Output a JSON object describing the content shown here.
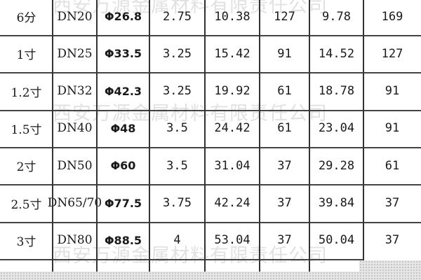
{
  "watermark": "西安万源金属材料有限责任公司",
  "rows": [
    [
      "6分",
      "DN20",
      "Φ26.8",
      "2.75",
      "10.38",
      "127",
      "9.78",
      "169"
    ],
    [
      "1寸",
      "DN25",
      "Φ33.5",
      "3.25",
      "15.42",
      "91",
      "14.52",
      "127"
    ],
    [
      "1.2寸",
      "DN32",
      "Φ42.3",
      "3.25",
      "19.92",
      "61",
      "18.78",
      "91"
    ],
    [
      "1.5寸",
      "DN40",
      "Φ48",
      "3.5",
      "24.42",
      "61",
      "23.04",
      "91"
    ],
    [
      "2寸",
      "DN50",
      "Φ60",
      "3.5",
      "31.04",
      "37",
      "29.28",
      "61"
    ],
    [
      "2.5寸",
      "DN65/70",
      "Φ77.5",
      "3.75",
      "42.24",
      "37",
      "39.84",
      "37"
    ],
    [
      "3寸",
      "DN80",
      "Φ88.5",
      "4",
      "53.04",
      "37",
      "50.04",
      "37"
    ]
  ]
}
